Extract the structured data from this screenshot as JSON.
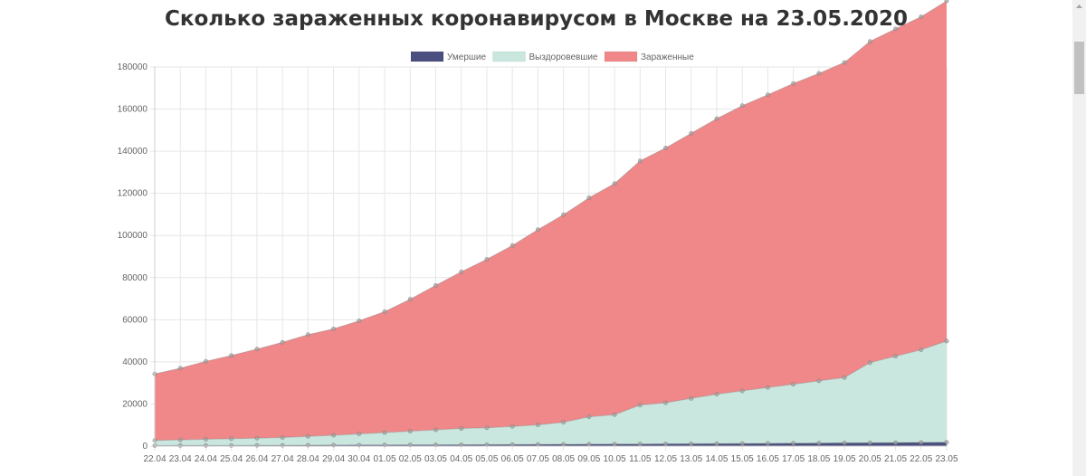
{
  "title": "Сколько зараженных коронавирусом в Москве на 23.05.2020",
  "chart_data": {
    "type": "area",
    "stacked": true,
    "categories": [
      "22.04",
      "23.04",
      "24.04",
      "25.04",
      "26.04",
      "27.04",
      "28.04",
      "29.04",
      "30.04",
      "01.05",
      "02.05",
      "03.05",
      "04.05",
      "05.05",
      "06.05",
      "07.05",
      "08.05",
      "09.05",
      "10.05",
      "11.05",
      "12.05",
      "13.05",
      "14.05",
      "15.05",
      "16.05",
      "17.05",
      "18.05",
      "19.05",
      "20.05",
      "21.05",
      "22.05",
      "23.05"
    ],
    "series": [
      {
        "name": "Умершие",
        "color": "#4b4f7f",
        "values": [
          250,
          280,
          310,
          340,
          370,
          400,
          430,
          470,
          500,
          540,
          580,
          620,
          660,
          700,
          750,
          800,
          850,
          900,
          950,
          1000,
          1060,
          1120,
          1170,
          1230,
          1300,
          1380,
          1460,
          1540,
          1610,
          1680,
          1760,
          1860
        ]
      },
      {
        "name": "Выздоровевшие",
        "color": "#c9e7de",
        "values": [
          2500,
          2700,
          2950,
          3200,
          3400,
          3700,
          4200,
          4700,
          5300,
          5900,
          6500,
          7100,
          7700,
          8000,
          8600,
          9300,
          10500,
          13000,
          14000,
          18500,
          19500,
          21500,
          23500,
          25000,
          26500,
          28000,
          29500,
          31000,
          38000,
          41000,
          44000,
          48000
        ]
      },
      {
        "name": "Зараженные",
        "color": "#f0888a",
        "values": [
          31500,
          34000,
          37000,
          39500,
          42300,
          45200,
          48300,
          50500,
          53700,
          57400,
          62700,
          68600,
          74400,
          80000,
          85900,
          92700,
          98500,
          104000,
          109700,
          115900,
          121000,
          125900,
          130800,
          135400,
          139000,
          142800,
          146000,
          149600,
          152500,
          155400,
          158100,
          161500
        ]
      }
    ],
    "ylim": [
      0,
      180000
    ],
    "yticks": [
      0,
      20000,
      40000,
      60000,
      80000,
      100000,
      120000,
      140000,
      160000,
      180000
    ],
    "grid": true,
    "legend": "top-center"
  }
}
